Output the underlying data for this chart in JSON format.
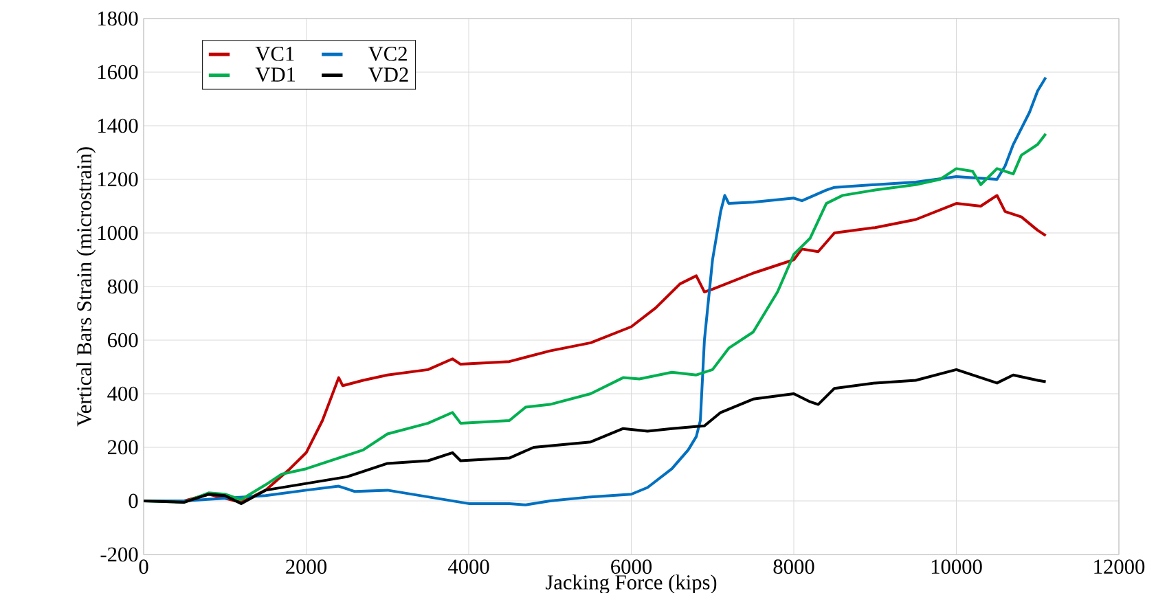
{
  "chart_data": {
    "type": "line",
    "xlabel": "Jacking Force (kips)",
    "ylabel": "Vertical Bars Strain (microstrain)",
    "xlim": [
      0,
      12000
    ],
    "ylim": [
      -200,
      1800
    ],
    "xticks": [
      0,
      2000,
      4000,
      6000,
      8000,
      10000,
      12000
    ],
    "yticks": [
      -200,
      0,
      200,
      400,
      600,
      800,
      1000,
      1200,
      1400,
      1600,
      1800
    ],
    "grid": true,
    "legend": "top left",
    "marker": "none",
    "line_style": "solid",
    "series": [
      {
        "name": "VC1",
        "color": "#c00000",
        "x": [
          0,
          500,
          800,
          1000,
          1200,
          1500,
          1800,
          2000,
          2200,
          2350,
          2400,
          2450,
          2700,
          3000,
          3500,
          3800,
          3900,
          4500,
          5000,
          5500,
          6000,
          6300,
          6600,
          6800,
          6900,
          7000,
          7500,
          8000,
          8100,
          8300,
          8500,
          9000,
          9500,
          10000,
          10300,
          10500,
          10600,
          10800,
          11000,
          11100
        ],
        "values": [
          0,
          0,
          25,
          null,
          -5,
          40,
          120,
          180,
          300,
          420,
          460,
          430,
          450,
          470,
          490,
          530,
          510,
          520,
          560,
          590,
          650,
          720,
          810,
          840,
          780,
          790,
          850,
          900,
          940,
          930,
          1000,
          1020,
          1050,
          1110,
          1100,
          1140,
          1080,
          1060,
          1010,
          990
        ]
      },
      {
        "name": "VC2",
        "color": "#0070c0",
        "x": [
          0,
          500,
          1000,
          1500,
          2000,
          2400,
          2600,
          3000,
          3500,
          4000,
          4500,
          4700,
          5000,
          5500,
          6000,
          6200,
          6500,
          6700,
          6800,
          6850,
          6900,
          7000,
          7100,
          7150,
          7200,
          7500,
          8000,
          8100,
          8400,
          8500,
          9000,
          9500,
          10000,
          10500,
          10600,
          10700,
          10900,
          11000,
          11100
        ],
        "values": [
          0,
          0,
          10,
          20,
          40,
          55,
          35,
          40,
          15,
          -10,
          -10,
          -15,
          0,
          15,
          25,
          50,
          120,
          190,
          240,
          300,
          600,
          900,
          1080,
          1140,
          1110,
          1115,
          1130,
          1120,
          1160,
          1170,
          1180,
          1190,
          1210,
          1200,
          1250,
          1330,
          1450,
          1530,
          1580
        ]
      },
      {
        "name": "VD1",
        "color": "#00b050",
        "x": [
          0,
          500,
          800,
          1000,
          1200,
          1500,
          1700,
          2000,
          2500,
          2700,
          3000,
          3500,
          3800,
          3900,
          4500,
          4700,
          5000,
          5500,
          5900,
          6100,
          6500,
          6800,
          7000,
          7200,
          7500,
          7800,
          8000,
          8200,
          8400,
          8600,
          9000,
          9500,
          9800,
          10000,
          10200,
          10300,
          10500,
          10700,
          10800,
          11000,
          11100
        ],
        "values": [
          0,
          -5,
          30,
          25,
          5,
          60,
          100,
          120,
          170,
          190,
          250,
          290,
          330,
          290,
          300,
          350,
          360,
          400,
          460,
          455,
          480,
          470,
          490,
          570,
          630,
          780,
          920,
          980,
          1110,
          1140,
          1160,
          1180,
          1200,
          1240,
          1230,
          1180,
          1240,
          1220,
          1290,
          1330,
          1370
        ]
      },
      {
        "name": "VD2",
        "color": "#000000",
        "x": [
          0,
          500,
          800,
          1000,
          1200,
          1500,
          2000,
          2500,
          3000,
          3500,
          3800,
          3900,
          4500,
          4800,
          5500,
          5900,
          6200,
          6500,
          6900,
          7100,
          7500,
          8000,
          8200,
          8300,
          8500,
          9000,
          9500,
          10000,
          10300,
          10500,
          10700,
          11000,
          11100
        ],
        "values": [
          0,
          -5,
          25,
          20,
          -10,
          40,
          65,
          90,
          140,
          150,
          180,
          150,
          160,
          200,
          220,
          270,
          260,
          270,
          280,
          330,
          380,
          400,
          370,
          360,
          420,
          440,
          450,
          490,
          460,
          440,
          470,
          450,
          445
        ]
      }
    ]
  }
}
